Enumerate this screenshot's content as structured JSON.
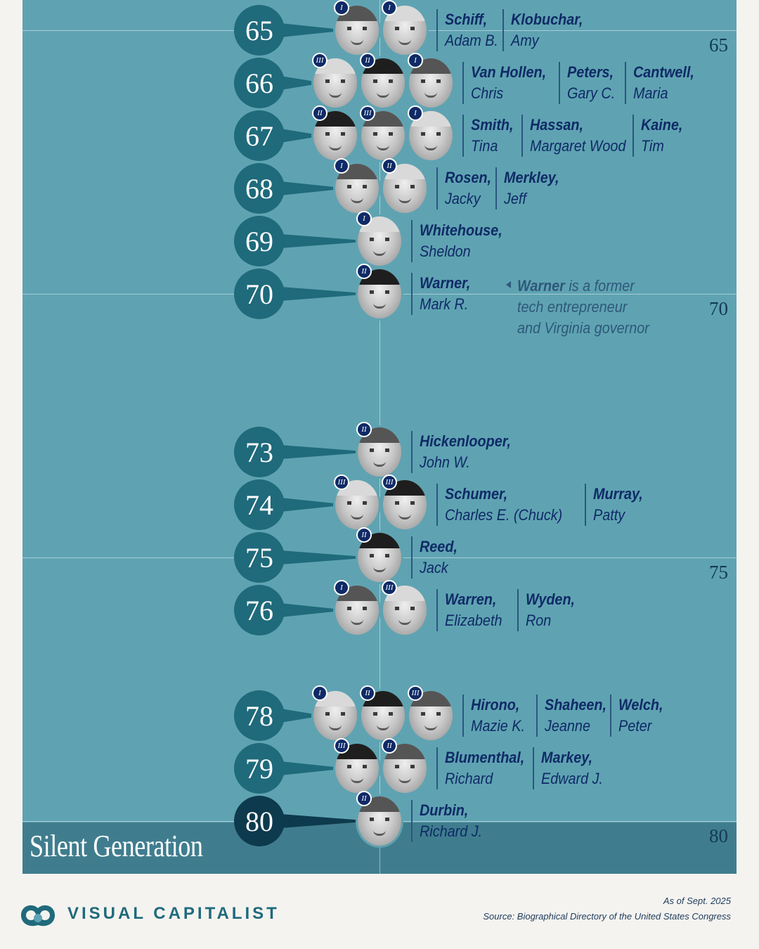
{
  "chart_data": {
    "type": "scatter",
    "y_axis": {
      "ticks": [
        65,
        70,
        75,
        80
      ]
    },
    "generation_label": "Silent Generation",
    "rows": [
      {
        "age": 65,
        "senators": [
          {
            "last": "Schiff,",
            "first": "Adam B.",
            "term": "I"
          },
          {
            "last": "Klobuchar,",
            "first": "Amy",
            "term": "I"
          }
        ]
      },
      {
        "age": 66,
        "senators": [
          {
            "last": "Van Hollen,",
            "first": "Chris",
            "term": "III"
          },
          {
            "last": "Peters,",
            "first": "Gary C.",
            "term": "II"
          },
          {
            "last": "Cantwell,",
            "first": "Maria",
            "term": "I"
          }
        ]
      },
      {
        "age": 67,
        "senators": [
          {
            "last": "Smith,",
            "first": "Tina",
            "term": "II"
          },
          {
            "last": "Hassan,",
            "first": "Margaret Wood",
            "term": "III"
          },
          {
            "last": "Kaine,",
            "first": "Tim",
            "term": "I"
          }
        ]
      },
      {
        "age": 68,
        "senators": [
          {
            "last": "Rosen,",
            "first": "Jacky",
            "term": "I"
          },
          {
            "last": "Merkley,",
            "first": "Jeff",
            "term": "II"
          }
        ]
      },
      {
        "age": 69,
        "senators": [
          {
            "last": "Whitehouse,",
            "first": "Sheldon",
            "term": "I"
          }
        ]
      },
      {
        "age": 70,
        "senators": [
          {
            "last": "Warner,",
            "first": "Mark R.",
            "term": "II"
          }
        ]
      },
      {
        "age": 73,
        "senators": [
          {
            "last": "Hickenlooper,",
            "first": "John W.",
            "term": "II"
          }
        ]
      },
      {
        "age": 74,
        "senators": [
          {
            "last": "Schumer,",
            "first": "Charles E. (Chuck)",
            "term": "III"
          },
          {
            "last": "Murray,",
            "first": "Patty",
            "term": "III"
          }
        ]
      },
      {
        "age": 75,
        "senators": [
          {
            "last": "Reed,",
            "first": "Jack",
            "term": "II"
          }
        ]
      },
      {
        "age": 76,
        "senators": [
          {
            "last": "Warren,",
            "first": "Elizabeth",
            "term": "I"
          },
          {
            "last": "Wyden,",
            "first": "Ron",
            "term": "III"
          }
        ]
      },
      {
        "age": 78,
        "senators": [
          {
            "last": "Hirono,",
            "first": "Mazie K.",
            "term": "I"
          },
          {
            "last": "Shaheen,",
            "first": "Jeanne",
            "term": "II"
          },
          {
            "last": "Welch,",
            "first": "Peter",
            "term": "III"
          }
        ]
      },
      {
        "age": 79,
        "senators": [
          {
            "last": "Blumenthal,",
            "first": "Richard",
            "term": "III"
          },
          {
            "last": "Markey,",
            "first": "Edward J.",
            "term": "II"
          }
        ]
      },
      {
        "age": 80,
        "senators": [
          {
            "last": "Durbin,",
            "first": "Richard J.",
            "term": "II"
          }
        ]
      }
    ],
    "annotation": {
      "bold": "Warner",
      "rest_line1": " is a former",
      "line2": "tech entrepreneur",
      "line3": "and Virginia governor"
    }
  },
  "footer": {
    "brand": "VISUAL CAPITALIST",
    "as_of": "As of Sept. 2025",
    "source": "Source: Biographical Directory of the United States Congress"
  },
  "colors": {
    "panel": "#5fa3b2",
    "circle": "#1f6a7b",
    "circle_dark": "#0e3a4d",
    "text": "#0f2a66",
    "band": "#3f7d8e"
  }
}
